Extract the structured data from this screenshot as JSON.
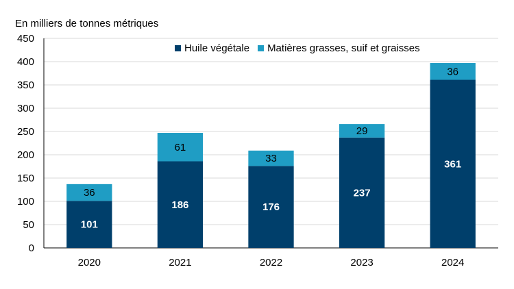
{
  "chart_data": {
    "type": "bar",
    "stacked": true,
    "unit_label": "En milliers de tonnes métriques",
    "categories": [
      "2020",
      "2021",
      "2022",
      "2023",
      "2024"
    ],
    "series": [
      {
        "name": "Huile végétale",
        "color": "#003f6b",
        "values": [
          101,
          186,
          176,
          237,
          361
        ],
        "label_color": "#ffffff"
      },
      {
        "name": "Matières grasses, suif et graisses",
        "color": "#1f9dc4",
        "values": [
          36,
          61,
          33,
          29,
          36
        ],
        "label_color": "#000000"
      }
    ],
    "ylim": [
      0,
      450
    ],
    "yticks": [
      "0",
      "50",
      "100",
      "150",
      "200",
      "250",
      "300",
      "350",
      "400",
      "450"
    ],
    "legend_position": "top-right",
    "grid": true
  }
}
